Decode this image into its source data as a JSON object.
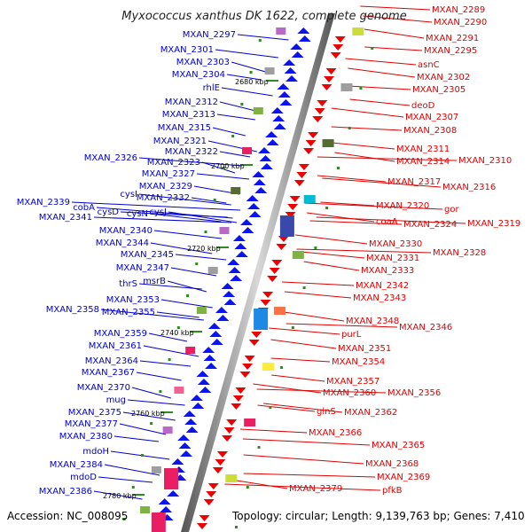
{
  "title": "Myxococcus xanthus DK 1622, complete genome",
  "accession": "Accession: NC_008095",
  "topology": "Topology: circular; Length: 9,139,763 bp; Genes: 7,410",
  "colors": {
    "left": "#0000cc",
    "right": "#e00000",
    "backbone": "#888888"
  },
  "kbp_labels": [
    "2680 kbp",
    "2700 kbp",
    "2720 kbp",
    "2740 kbp",
    "2760 kbp",
    "2780 kbp"
  ],
  "left_genes": [
    "MXAN_2297",
    "MXAN_2301",
    "MXAN_2303",
    "MXAN_2304",
    "rhlE",
    "MXAN_2312",
    "MXAN_2313",
    "MXAN_2315",
    "MXAN_2321",
    "MXAN_2322",
    "MXAN_2326",
    "MXAN_2323",
    "MXAN_2327",
    "MXAN_2329",
    "cysI",
    "MXAN_2332",
    "MXAN_2339",
    "cobA",
    "cysD",
    "cysN",
    "cysJ",
    "MXAN_2341",
    "MXAN_2340",
    "MXAN_2344",
    "MXAN_2345",
    "MXAN_2347",
    "msrB",
    "thrS",
    "MXAN_2353",
    "MXAN_2358",
    "MXAN_2355",
    "MXAN_2359",
    "MXAN_2361",
    "MXAN_2364",
    "MXAN_2367",
    "MXAN_2370",
    "mug",
    "MXAN_2375",
    "MXAN_2377",
    "MXAN_2380",
    "mdoH",
    "MXAN_2384",
    "mdoD",
    "MXAN_2386"
  ],
  "right_genes": [
    "MXAN_2289",
    "MXAN_2290",
    "MXAN_2291",
    "MXAN_2295",
    "asnC",
    "MXAN_2302",
    "MXAN_2305",
    "deoD",
    "MXAN_2307",
    "MXAN_2308",
    "MXAN_2311",
    "MXAN_2314",
    "MXAN_2310",
    "MXAN_2317",
    "MXAN_2316",
    "MXAN_2320",
    "gor",
    "coaA",
    "MXAN_2324",
    "MXAN_2319",
    "MXAN_2330",
    "MXAN_2328",
    "MXAN_2331",
    "MXAN_2333",
    "MXAN_2342",
    "MXAN_2343",
    "MXAN_2348",
    "MXAN_2346",
    "purL",
    "MXAN_2351",
    "MXAN_2354",
    "MXAN_2357",
    "MXAN_2360",
    "MXAN_2356",
    "glnS",
    "MXAN_2362",
    "MXAN_2366",
    "MXAN_2365",
    "MXAN_2368",
    "MXAN_2369",
    "pfkB",
    "MXAN_2379"
  ]
}
